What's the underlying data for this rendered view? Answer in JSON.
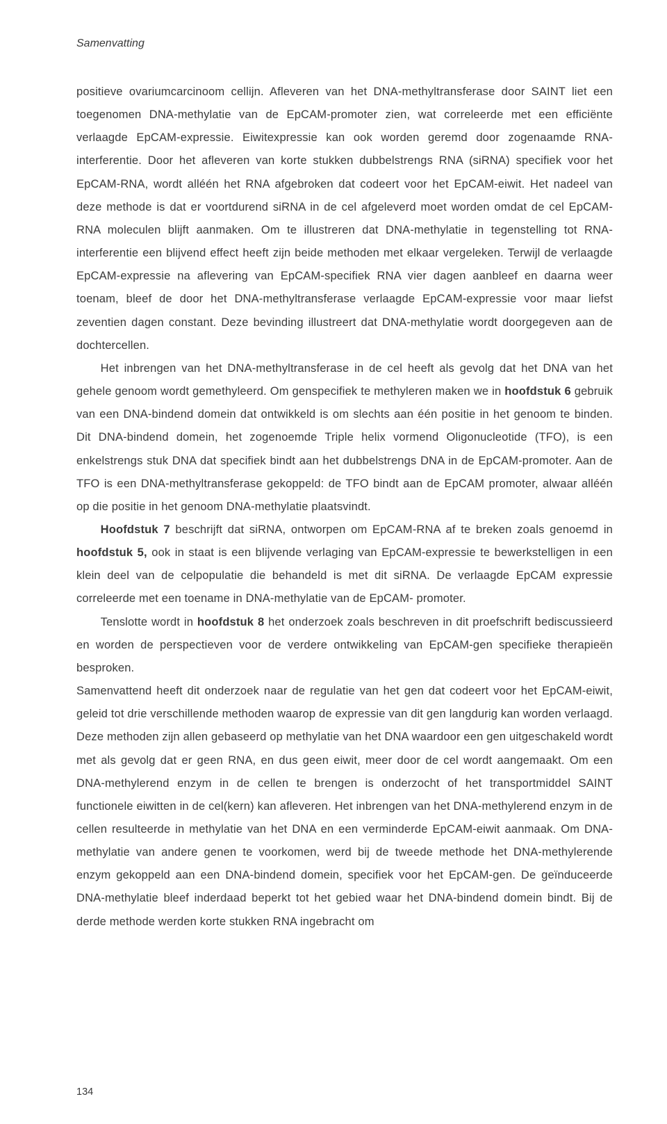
{
  "page": {
    "running_head": "Samenvatting",
    "page_number": "134"
  },
  "para1": {
    "t1": "positieve ovariumcarcinoom cellijn. Afleveren van het DNA-methyltransferase door SAINT liet een toegenomen DNA-methylatie van de EpCAM-promoter zien, wat correleerde met een efficiënte verlaagde EpCAM-expressie. Eiwitexpressie kan ook worden geremd door zogenaamde RNA-interferentie. Door het afleveren van korte stukken dubbelstrengs RNA (siRNA) specifiek voor het EpCAM-RNA, wordt alléén het RNA afgebroken dat codeert voor het EpCAM-eiwit. Het nadeel van deze methode is dat er voortdurend siRNA in de cel afgeleverd moet worden omdat de cel EpCAM-RNA moleculen blijft aanmaken. Om te illustreren dat DNA-methylatie in tegenstelling tot RNA-interferentie een blijvend effect heeft zijn beide methoden met elkaar vergeleken. Terwijl de verlaagde EpCAM-expressie na aflevering van EpCAM-specifiek RNA vier dagen aanbleef en daarna weer toenam, bleef de door het DNA-methyltransferase verlaagde EpCAM-expressie voor maar liefst zeventien dagen constant. Deze bevinding illustreert dat DNA-methylatie wordt doorgegeven aan de dochtercellen."
  },
  "para2": {
    "t1": "Het inbrengen van het DNA-methyltransferase in de cel heeft als gevolg dat het DNA van het gehele genoom wordt gemethyleerd. Om genspecifiek te methyleren maken we in ",
    "b1": "hoofdstuk 6",
    "t2": " gebruik van een DNA-bindend domein dat ontwikkeld is om slechts aan één positie in het genoom te binden. Dit DNA-bindend domein, het zogenoemde Triple helix vormend Oligonucleotide (TFO), is een enkelstrengs stuk DNA dat specifiek bindt aan het dubbelstrengs DNA in de EpCAM-promoter. Aan de TFO is een DNA-methyltransferase gekoppeld: de TFO bindt aan de EpCAM promoter, alwaar alléén op die positie in het genoom DNA-methylatie plaatsvindt."
  },
  "para3": {
    "b1": "Hoofdstuk 7",
    "t1": " beschrijft dat siRNA, ontworpen om EpCAM-RNA af te breken zoals genoemd in ",
    "b2": "hoofdstuk 5,",
    "t2": " ook in staat is een blijvende verlaging van EpCAM-expressie te bewerkstelligen in een klein deel van de celpopulatie die behandeld is met dit siRNA. De verlaagde EpCAM expressie correleerde met een toename in DNA-methylatie van de EpCAM- promoter."
  },
  "para4": {
    "t1": "Tenslotte wordt in ",
    "b1": "hoofdstuk 8",
    "t2": " het onderzoek zoals beschreven in dit proefschrift bediscussieerd en worden de perspectieven voor de verdere ontwikkeling van EpCAM-gen specifieke therapieën besproken."
  },
  "para5": {
    "t1": "Samenvattend heeft dit onderzoek naar de regulatie van het gen dat codeert voor het EpCAM-eiwit, geleid tot drie verschillende methoden waarop de expressie van dit gen langdurig kan worden verlaagd. Deze methoden zijn allen gebaseerd op methylatie van het DNA waardoor een gen uitgeschakeld wordt met als gevolg dat er geen RNA, en dus geen eiwit, meer door de cel wordt aangemaakt. Om een DNA-methylerend enzym in de cellen te brengen is onderzocht of het transportmiddel SAINT functionele eiwitten in de cel(kern) kan afleveren. Het inbrengen van het DNA-methylerend enzym in de cellen resulteerde in methylatie van het DNA en een verminderde EpCAM-eiwit aanmaak. Om DNA-methylatie van andere genen te voorkomen, werd bij de tweede methode het DNA-methylerende enzym gekoppeld aan een DNA-bindend domein, specifiek voor het EpCAM-gen. De geïnduceerde DNA-methylatie bleef inderdaad beperkt tot het gebied waar het DNA-bindend domein bindt. Bij de derde methode werden korte stukken RNA ingebracht om"
  }
}
